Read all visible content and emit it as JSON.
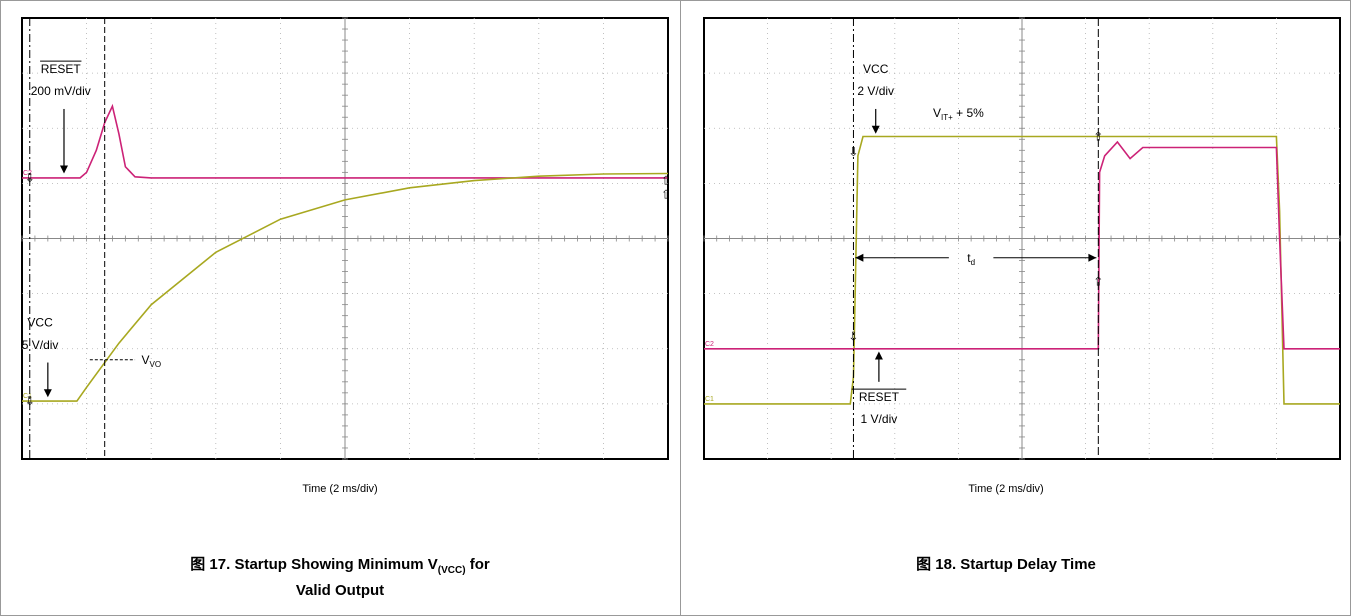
{
  "colors": {
    "yellow": "#a8a820",
    "magenta": "#cc2277",
    "grid": "#b0b0b0",
    "frame": "#000000"
  },
  "chart_data": [
    {
      "type": "line",
      "title": "Startup Showing Minimum V(VCC) for Valid Output",
      "caption": {
        "prefix": "图 17. Startup Showing Minimum V",
        "sub": "(VCC)",
        "suffix": " for",
        "line2": "Valid Output"
      },
      "xlabel": "Time (2 ms/div)",
      "xlim": [
        0,
        10
      ],
      "ylim": [
        -4,
        4
      ],
      "grid": true,
      "series": [
        {
          "name": "RESET",
          "label_lines": [
            "RESET",
            "200 mV/div"
          ],
          "overline": true,
          "channel": "C2",
          "color": "#cc2277",
          "x": [
            0,
            0.9,
            1.0,
            1.15,
            1.28,
            1.4,
            1.5,
            1.6,
            1.75,
            2.0,
            10.0
          ],
          "y": [
            1.1,
            1.1,
            1.2,
            1.6,
            2.1,
            2.4,
            1.9,
            1.3,
            1.12,
            1.1,
            1.1
          ]
        },
        {
          "name": "VCC",
          "label_lines": [
            "VCC",
            "5 V/div"
          ],
          "channel": "C1",
          "color": "#a8a820",
          "x": [
            0,
            0.85,
            1.0,
            1.5,
            2.0,
            3.0,
            4.0,
            5.0,
            6.0,
            7.0,
            8.0,
            9.0,
            10.0
          ],
          "y": [
            -2.95,
            -2.95,
            -2.7,
            -1.9,
            -1.2,
            -0.25,
            0.35,
            0.7,
            0.92,
            1.05,
            1.13,
            1.17,
            1.18
          ]
        }
      ],
      "annotations": [
        "V",
        "VO"
      ]
    },
    {
      "type": "line",
      "title": "Startup Delay Time",
      "caption": {
        "text": "图 18. Startup Delay Time"
      },
      "xlabel": "Time (2 ms/div)",
      "xlim": [
        0,
        10
      ],
      "ylim": [
        -4,
        4
      ],
      "grid": true,
      "series": [
        {
          "name": "VCC",
          "label_lines": [
            "VCC",
            "2 V/div"
          ],
          "channel": "C1",
          "color": "#a8a820",
          "x": [
            0,
            2.3,
            2.35,
            2.42,
            2.5,
            6.2,
            9.0,
            9.05,
            9.12,
            10.0
          ],
          "y": [
            -3.0,
            -3.0,
            -2.5,
            1.5,
            1.85,
            1.85,
            1.85,
            0.5,
            -3.0,
            -3.0
          ]
        },
        {
          "name": "RESET",
          "label_lines": [
            "RESET",
            "1 V/div"
          ],
          "overline": true,
          "channel": "C2",
          "color": "#cc2277",
          "x": [
            0,
            6.2,
            6.22,
            6.3,
            6.5,
            6.7,
            6.9,
            7.2,
            9.0,
            9.05,
            9.12,
            10.0
          ],
          "y": [
            -2.0,
            -2.0,
            1.2,
            1.5,
            1.75,
            1.45,
            1.65,
            1.65,
            1.65,
            0.0,
            -2.0,
            -2.0
          ]
        }
      ],
      "annotations": [
        "V",
        "IT+",
        " + 5%",
        "t",
        "d"
      ]
    }
  ]
}
